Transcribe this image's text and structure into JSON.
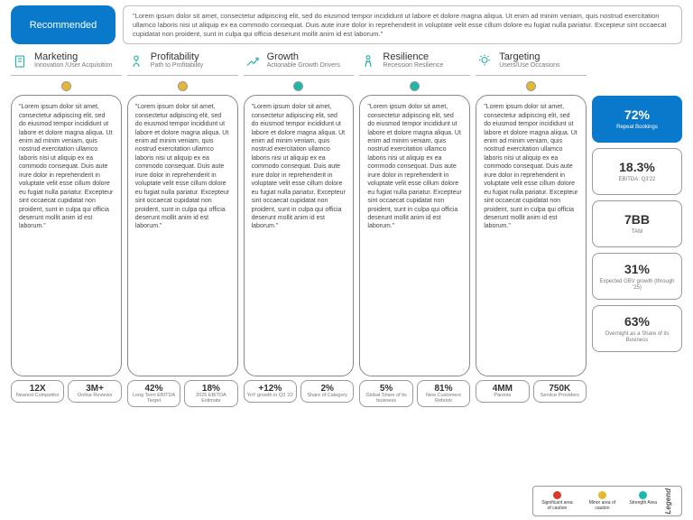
{
  "colors": {
    "accent": "#0979cb",
    "teal": "#23b2a4",
    "dot_yellow": "#e4b92f",
    "dot_teal": "#1cb8a9",
    "dot_red": "#d93a2b",
    "border": "#999999"
  },
  "header": {
    "recommended_label": "Recommended",
    "quote": "\"Lorem ipsum dolor sit amet, consectetur adipiscing elit, sed do eiusmod tempor incididunt ut labore et dolore magna aliqua. Ut enim ad minim veniam, quis nostrud exercitation ullamco laboris nisi ut aliquip ex ea commodo consequat. Duis aute irure dolor in reprehenderit in voluptate velit esse cillum dolore eu fugiat nulla pariatur. Excepteur sint occaecat cupidatat non proident, sunt in culpa qui officia deserunt mollit anim id est laborum.\""
  },
  "categories": [
    {
      "title": "Marketing",
      "subtitle": "Innovation /User Acquisition"
    },
    {
      "title": "Profitability",
      "subtitle": "Path to Profitability"
    },
    {
      "title": "Growth",
      "subtitle": "Actionable Growth Drivers"
    },
    {
      "title": "Resilience",
      "subtitle": "Recession Resilience"
    },
    {
      "title": "Targeting",
      "subtitle": "Users/Use Occasions"
    }
  ],
  "lorem": "\"Lorem ipsum dolor sit amet, consectetur adipiscing elit, sed do eiusmod tempor incididunt ut labore et dolore magna aliqua. Ut enim ad minim veniam, quis nostrud exercitation ullamco laboris nisi ut aliquip ex ea commodo consequat. Duis aute irure dolor in reprehenderit in voluptate velit esse cillum dolore eu fugiat nulla pariatur. Excepteur sint occaecat cupidatat non proident, sunt in culpa qui officia deserunt mollit anim id est laborum.\"",
  "columns": [
    {
      "dot_color": "#e4b92f",
      "stats": [
        {
          "value": "12X",
          "label": "Nearest Competitor"
        },
        {
          "value": "3M+",
          "label": "Online Reviews"
        }
      ]
    },
    {
      "dot_color": "#e4b92f",
      "stats": [
        {
          "value": "42%",
          "label": "Long Term EBITDA Target"
        },
        {
          "value": "18%",
          "label": "2025 EBITDA Estimate"
        }
      ]
    },
    {
      "dot_color": "#1cb8a9",
      "stats": [
        {
          "value": "+12%",
          "label": "YoY growth in Q3 '22"
        },
        {
          "value": "2%",
          "label": "Share of Category"
        }
      ]
    },
    {
      "dot_color": "#1cb8a9",
      "stats": [
        {
          "value": "5%",
          "label": "Global Share of its business"
        },
        {
          "value": "81%",
          "label": "New Customers Rebook"
        }
      ]
    },
    {
      "dot_color": "#e4b92f",
      "stats": [
        {
          "value": "4MM",
          "label": "Parents"
        },
        {
          "value": "750K",
          "label": "Service Providers"
        }
      ]
    }
  ],
  "side_cards": [
    {
      "value": "72%",
      "label": "Repeat Bookings",
      "primary": true
    },
    {
      "value": "18.3%",
      "label": "EBITDA: Q3'22",
      "primary": false
    },
    {
      "value": "7BB",
      "label": "TAM",
      "primary": false
    },
    {
      "value": "31%",
      "label": "Expected GBV growth (through '25)",
      "primary": false
    },
    {
      "value": "63%",
      "label": "Overnight as a Share of its Business",
      "primary": false
    }
  ],
  "legend": {
    "title": "Legend",
    "items": [
      {
        "color": "#d93a2b",
        "label": "Significant area of caution"
      },
      {
        "color": "#e4b92f",
        "label": "Minor area of caution"
      },
      {
        "color": "#1cb8a9",
        "label": "Strength Area"
      }
    ]
  }
}
